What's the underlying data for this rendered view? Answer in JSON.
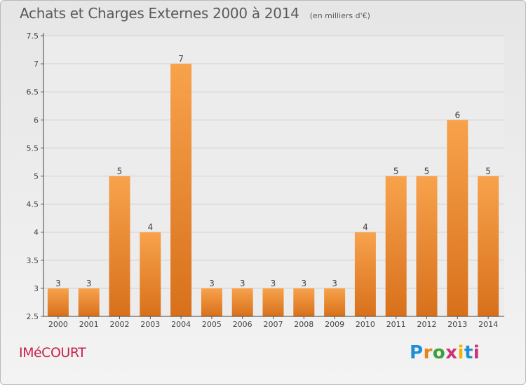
{
  "header": {
    "title": "Achats et Charges Externes 2000 à 2014",
    "unit": "(en milliers d'€)"
  },
  "footer": {
    "place": "IMéCOURT",
    "logo": [
      "P",
      "r",
      "o",
      "x",
      "i",
      "t",
      "i"
    ]
  },
  "colors": {
    "bar_top": "#f8a24c",
    "bar_bottom": "#d8701b",
    "title": "#5a5a5a",
    "place": "#c8224e"
  },
  "chart_data": {
    "type": "bar",
    "title": "Achats et Charges Externes 2000 à 2014",
    "subtitle": "(en milliers d'€)",
    "xlabel": "",
    "ylabel": "",
    "categories": [
      "2000",
      "2001",
      "2002",
      "2003",
      "2004",
      "2005",
      "2006",
      "2007",
      "2008",
      "2009",
      "2010",
      "2011",
      "2012",
      "2013",
      "2014"
    ],
    "values": [
      3,
      3,
      5,
      4,
      7,
      3,
      3,
      3,
      3,
      3,
      4,
      5,
      5,
      6,
      5
    ],
    "ylim": [
      2.5,
      7.5
    ],
    "yticks": [
      "2.5",
      "3",
      "3.5",
      "4",
      "4.5",
      "5",
      "5.5",
      "6",
      "6.5",
      "7",
      "7.5"
    ],
    "grid": true,
    "legend": "none"
  }
}
